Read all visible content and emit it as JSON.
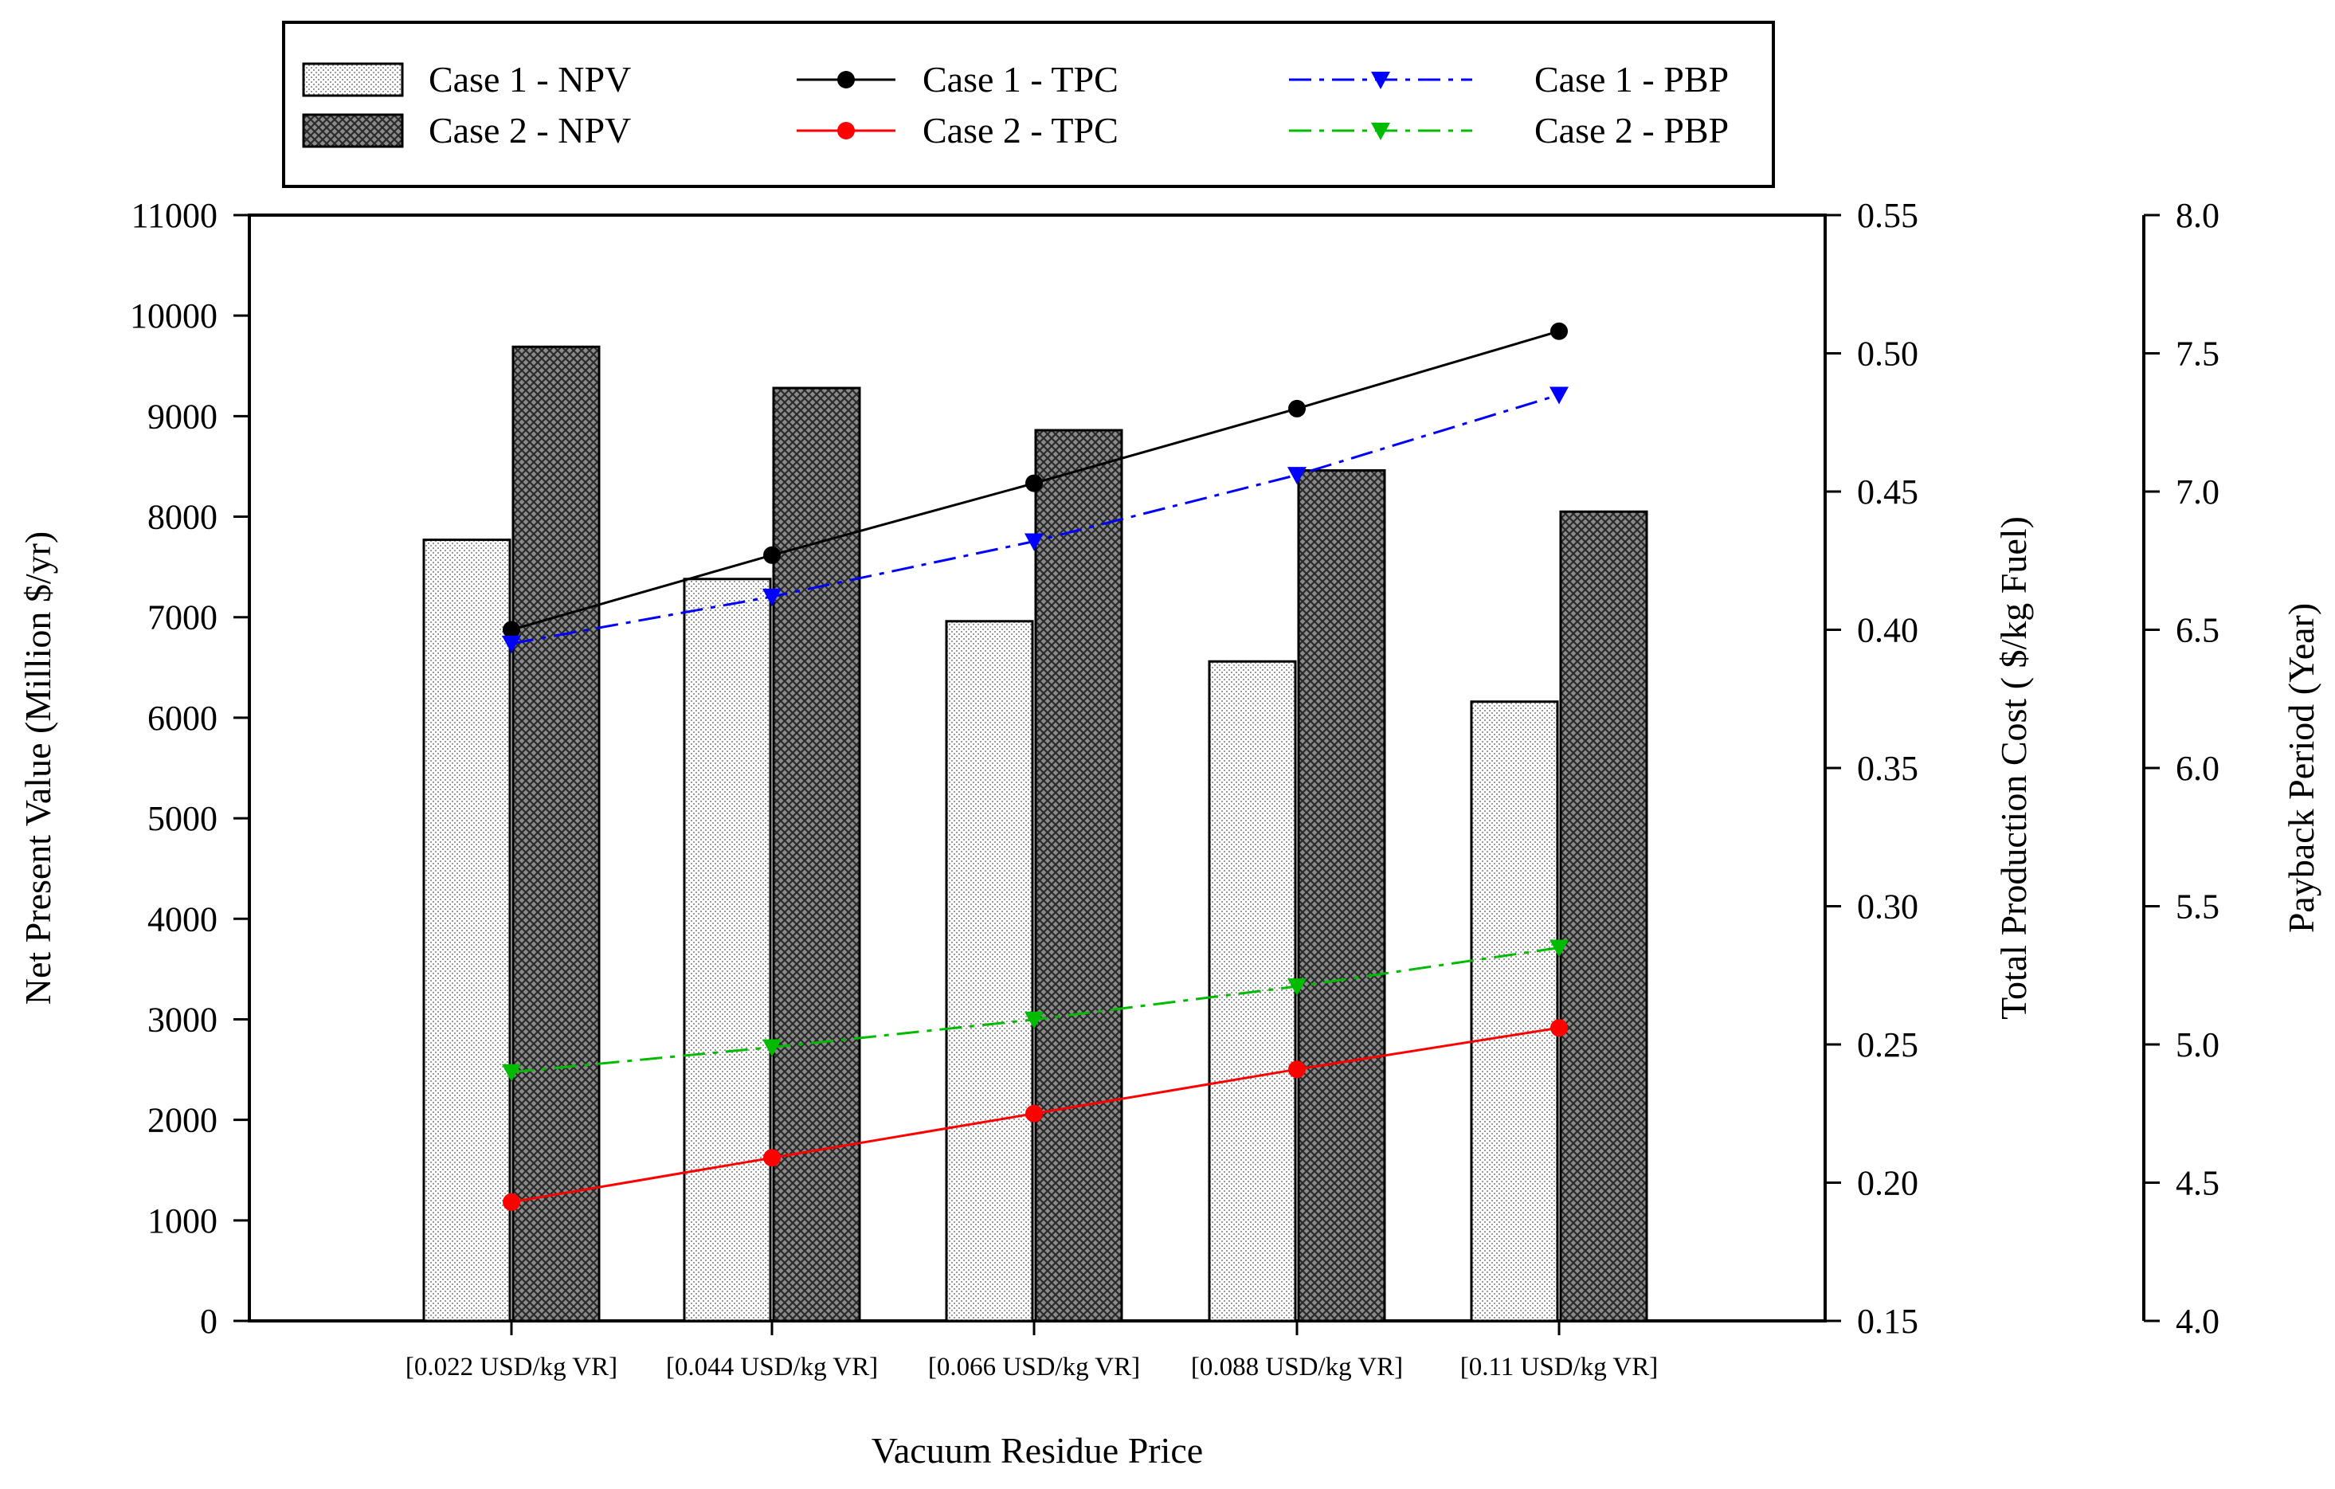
{
  "chart_data": {
    "type": "bar+line",
    "xlabel": "Vacuum Residue Price",
    "categories": [
      "[0.022 USD/kg VR]",
      "[0.044 USD/kg VR]",
      "[0.066 USD/kg VR]",
      "[0.088 USD/kg VR]",
      "[0.11 USD/kg VR]"
    ],
    "axes": {
      "npv": {
        "label": "Net Present Value (Million $/yr)",
        "range": [
          0,
          11000
        ],
        "ticks": [
          "0",
          "1000",
          "2000",
          "3000",
          "4000",
          "5000",
          "6000",
          "7000",
          "8000",
          "9000",
          "10000",
          "11000"
        ]
      },
      "tpc": {
        "label": "Total Production Cost ( $/kg Fuel)",
        "range": [
          0.15,
          0.55
        ],
        "ticks": [
          "0.15",
          "0.20",
          "0.25",
          "0.30",
          "0.35",
          "0.40",
          "0.45",
          "0.50",
          "0.55"
        ]
      },
      "pbp": {
        "label": "Payback Period (Year)",
        "range": [
          4.0,
          8.0
        ],
        "ticks": [
          "4.0",
          "4.5",
          "5.0",
          "5.5",
          "6.0",
          "6.5",
          "7.0",
          "7.5",
          "8.0"
        ]
      }
    },
    "bar_series": [
      {
        "name": "Case 1 - NPV",
        "axis": "npv",
        "pattern": "light",
        "values": [
          7770,
          7380,
          6960,
          6560,
          6160
        ]
      },
      {
        "name": "Case 2 - NPV",
        "axis": "npv",
        "pattern": "dark",
        "values": [
          9690,
          9280,
          8860,
          8460,
          8050
        ]
      }
    ],
    "line_series": [
      {
        "name": "Case 1 - TPC",
        "axis": "tpc",
        "color": "#000000",
        "marker": "circle",
        "dash": "solid",
        "values": [
          0.4,
          0.427,
          0.453,
          0.48,
          0.508
        ]
      },
      {
        "name": "Case 2 - TPC",
        "axis": "tpc",
        "color": "#ff0000",
        "marker": "circle",
        "dash": "solid",
        "values": [
          0.193,
          0.209,
          0.225,
          0.241,
          0.256
        ]
      },
      {
        "name": "Case 1 - PBP",
        "axis": "pbp",
        "color": "#0000ff",
        "marker": "triangle-down",
        "dash": "dashdot",
        "values": [
          6.45,
          6.62,
          6.82,
          7.06,
          7.35
        ]
      },
      {
        "name": "Case 2 - PBP",
        "axis": "pbp",
        "color": "#00bb00",
        "marker": "triangle-down",
        "dash": "dashdot",
        "values": [
          4.9,
          4.99,
          5.09,
          5.21,
          5.35
        ]
      }
    ],
    "legend": {
      "placement": "top",
      "entries": [
        "Case 1 - NPV",
        "Case 2 - NPV",
        "Case 1 - TPC",
        "Case 2 - TPC",
        "Case 1 - PBP",
        "Case 2 - PBP"
      ]
    }
  }
}
